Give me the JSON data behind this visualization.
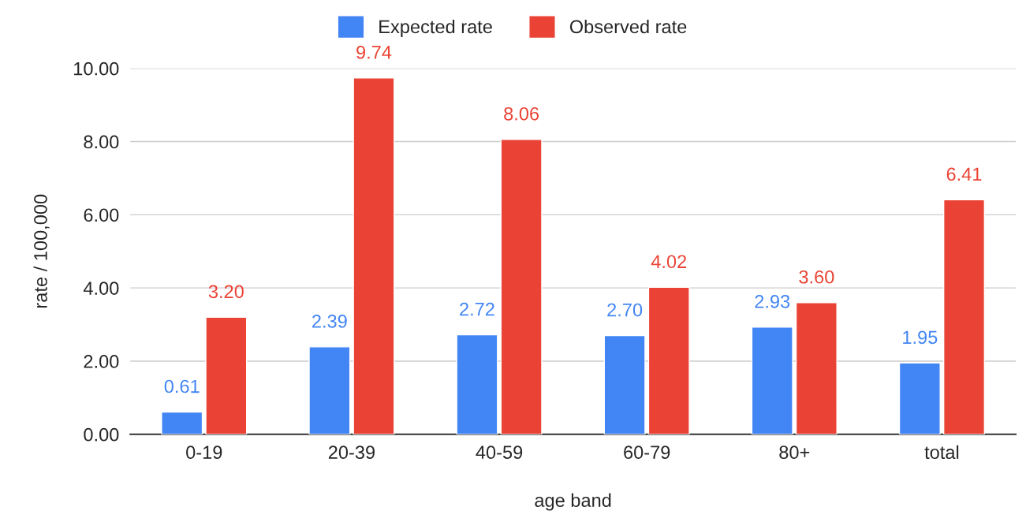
{
  "chart_data": {
    "type": "bar",
    "xlabel": "age band",
    "ylabel": "rate / 100,000",
    "categories": [
      "0-19",
      "20-39",
      "40-59",
      "60-79",
      "80+",
      "total"
    ],
    "series": [
      {
        "name": "Expected rate",
        "color": "#4285f4",
        "values": [
          0.61,
          2.39,
          2.72,
          2.7,
          2.93,
          1.95
        ],
        "value_labels": [
          "0.61",
          "2.39",
          "2.72",
          "2.70",
          "2.93",
          "1.95"
        ]
      },
      {
        "name": "Observed rate",
        "color": "#ea4335",
        "values": [
          3.2,
          9.74,
          8.06,
          4.02,
          3.6,
          6.41
        ],
        "value_labels": [
          "3.20",
          "9.74",
          "8.06",
          "4.02",
          "3.60",
          "6.41"
        ]
      }
    ],
    "ylim": [
      0,
      10
    ],
    "yticks": [
      {
        "value": 0,
        "label": "0.00"
      },
      {
        "value": 2,
        "label": "2.00"
      },
      {
        "value": 4,
        "label": "4.00"
      },
      {
        "value": 6,
        "label": "6.00"
      },
      {
        "value": 8,
        "label": "8.00"
      },
      {
        "value": 10,
        "label": "10.00"
      }
    ],
    "grid": "y",
    "legend": "top"
  }
}
